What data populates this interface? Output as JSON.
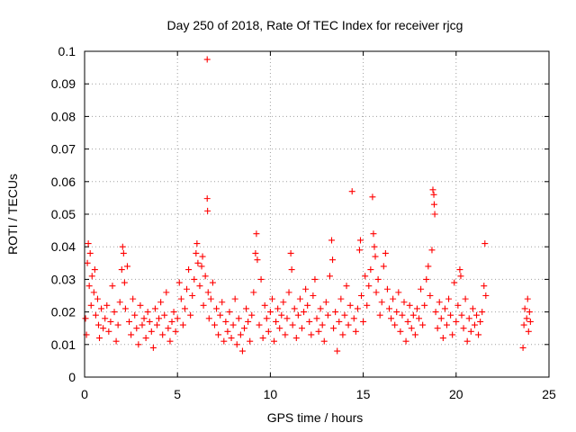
{
  "chart_data": {
    "type": "scatter",
    "title": "Day 250 of 2018, Rate Of TEC Index for receiver rjcg",
    "xlabel": "GPS time / hours",
    "ylabel": "ROTI / TECUs",
    "xlim": [
      0,
      25
    ],
    "ylim": [
      0,
      0.1
    ],
    "x_ticks": [
      "0",
      "5",
      "10",
      "15",
      "20",
      "25"
    ],
    "y_ticks": [
      "0",
      "0.01",
      "0.02",
      "0.03",
      "0.04",
      "0.05",
      "0.06",
      "0.07",
      "0.08",
      "0.09",
      "0.1"
    ],
    "grid": true,
    "marker": "+",
    "color": "#ff0000",
    "series": [
      {
        "name": "ROTI",
        "points": [
          [
            0.05,
            0.018
          ],
          [
            0.1,
            0.013
          ],
          [
            0.15,
            0.035
          ],
          [
            0.2,
            0.041
          ],
          [
            0.25,
            0.028
          ],
          [
            0.3,
            0.038
          ],
          [
            0.35,
            0.022
          ],
          [
            0.4,
            0.031
          ],
          [
            0.5,
            0.026
          ],
          [
            0.55,
            0.033
          ],
          [
            0.6,
            0.019
          ],
          [
            0.7,
            0.024
          ],
          [
            0.75,
            0.016
          ],
          [
            0.8,
            0.012
          ],
          [
            0.9,
            0.021
          ],
          [
            1.0,
            0.015
          ],
          [
            1.1,
            0.018
          ],
          [
            1.2,
            0.022
          ],
          [
            1.3,
            0.014
          ],
          [
            1.4,
            0.017
          ],
          [
            1.5,
            0.028
          ],
          [
            1.6,
            0.02
          ],
          [
            1.7,
            0.011
          ],
          [
            1.8,
            0.016
          ],
          [
            1.9,
            0.023
          ],
          [
            2.0,
            0.033
          ],
          [
            2.05,
            0.04
          ],
          [
            2.1,
            0.038
          ],
          [
            2.15,
            0.029
          ],
          [
            2.2,
            0.021
          ],
          [
            2.3,
            0.034
          ],
          [
            2.4,
            0.017
          ],
          [
            2.5,
            0.013
          ],
          [
            2.6,
            0.024
          ],
          [
            2.7,
            0.019
          ],
          [
            2.8,
            0.015
          ],
          [
            2.9,
            0.01
          ],
          [
            3.0,
            0.022
          ],
          [
            3.1,
            0.016
          ],
          [
            3.2,
            0.018
          ],
          [
            3.3,
            0.012
          ],
          [
            3.4,
            0.02
          ],
          [
            3.5,
            0.017
          ],
          [
            3.6,
            0.014
          ],
          [
            3.7,
            0.009
          ],
          [
            3.8,
            0.021
          ],
          [
            3.9,
            0.016
          ],
          [
            4.0,
            0.018
          ],
          [
            4.1,
            0.023
          ],
          [
            4.2,
            0.013
          ],
          [
            4.3,
            0.019
          ],
          [
            4.4,
            0.026
          ],
          [
            4.5,
            0.015
          ],
          [
            4.6,
            0.011
          ],
          [
            4.7,
            0.017
          ],
          [
            4.8,
            0.02
          ],
          [
            4.9,
            0.014
          ],
          [
            5.0,
            0.018
          ],
          [
            5.1,
            0.029
          ],
          [
            5.2,
            0.024
          ],
          [
            5.3,
            0.016
          ],
          [
            5.4,
            0.021
          ],
          [
            5.5,
            0.027
          ],
          [
            5.6,
            0.033
          ],
          [
            5.7,
            0.019
          ],
          [
            5.8,
            0.025
          ],
          [
            5.9,
            0.03
          ],
          [
            6.0,
            0.038
          ],
          [
            6.05,
            0.041
          ],
          [
            6.1,
            0.035
          ],
          [
            6.2,
            0.028
          ],
          [
            6.3,
            0.034
          ],
          [
            6.35,
            0.037
          ],
          [
            6.4,
            0.022
          ],
          [
            6.5,
            0.031
          ],
          [
            6.6,
            0.0975
          ],
          [
            6.6,
            0.0548
          ],
          [
            6.62,
            0.051
          ],
          [
            6.65,
            0.026
          ],
          [
            6.7,
            0.018
          ],
          [
            6.8,
            0.024
          ],
          [
            6.9,
            0.029
          ],
          [
            7.0,
            0.016
          ],
          [
            7.1,
            0.021
          ],
          [
            7.2,
            0.013
          ],
          [
            7.3,
            0.019
          ],
          [
            7.4,
            0.023
          ],
          [
            7.5,
            0.011
          ],
          [
            7.6,
            0.017
          ],
          [
            7.7,
            0.014
          ],
          [
            7.8,
            0.02
          ],
          [
            7.9,
            0.012
          ],
          [
            8.0,
            0.016
          ],
          [
            8.1,
            0.024
          ],
          [
            8.2,
            0.01
          ],
          [
            8.3,
            0.018
          ],
          [
            8.4,
            0.013
          ],
          [
            8.5,
            0.008
          ],
          [
            8.6,
            0.015
          ],
          [
            8.7,
            0.021
          ],
          [
            8.8,
            0.017
          ],
          [
            8.9,
            0.011
          ],
          [
            9.0,
            0.019
          ],
          [
            9.1,
            0.026
          ],
          [
            9.2,
            0.038
          ],
          [
            9.25,
            0.044
          ],
          [
            9.3,
            0.036
          ],
          [
            9.4,
            0.016
          ],
          [
            9.5,
            0.03
          ],
          [
            9.6,
            0.012
          ],
          [
            9.7,
            0.022
          ],
          [
            9.8,
            0.018
          ],
          [
            9.9,
            0.014
          ],
          [
            10.0,
            0.02
          ],
          [
            10.1,
            0.024
          ],
          [
            10.2,
            0.011
          ],
          [
            10.3,
            0.017
          ],
          [
            10.4,
            0.021
          ],
          [
            10.5,
            0.015
          ],
          [
            10.6,
            0.019
          ],
          [
            10.7,
            0.023
          ],
          [
            10.8,
            0.013
          ],
          [
            10.9,
            0.018
          ],
          [
            11.0,
            0.026
          ],
          [
            11.1,
            0.038
          ],
          [
            11.15,
            0.033
          ],
          [
            11.2,
            0.016
          ],
          [
            11.3,
            0.021
          ],
          [
            11.4,
            0.012
          ],
          [
            11.5,
            0.019
          ],
          [
            11.6,
            0.024
          ],
          [
            11.7,
            0.015
          ],
          [
            11.8,
            0.02
          ],
          [
            11.9,
            0.027
          ],
          [
            12.0,
            0.022
          ],
          [
            12.1,
            0.017
          ],
          [
            12.2,
            0.013
          ],
          [
            12.3,
            0.025
          ],
          [
            12.4,
            0.03
          ],
          [
            12.5,
            0.018
          ],
          [
            12.6,
            0.014
          ],
          [
            12.7,
            0.021
          ],
          [
            12.8,
            0.016
          ],
          [
            12.9,
            0.011
          ],
          [
            13.0,
            0.023
          ],
          [
            13.1,
            0.019
          ],
          [
            13.2,
            0.031
          ],
          [
            13.3,
            0.042
          ],
          [
            13.35,
            0.036
          ],
          [
            13.4,
            0.015
          ],
          [
            13.5,
            0.02
          ],
          [
            13.6,
            0.008
          ],
          [
            13.7,
            0.017
          ],
          [
            13.8,
            0.024
          ],
          [
            13.9,
            0.013
          ],
          [
            14.0,
            0.019
          ],
          [
            14.1,
            0.028
          ],
          [
            14.2,
            0.016
          ],
          [
            14.3,
            0.022
          ],
          [
            14.4,
            0.057
          ],
          [
            14.5,
            0.018
          ],
          [
            14.6,
            0.014
          ],
          [
            14.7,
            0.021
          ],
          [
            14.8,
            0.039
          ],
          [
            14.85,
            0.042
          ],
          [
            14.9,
            0.025
          ],
          [
            15.0,
            0.017
          ],
          [
            15.1,
            0.031
          ],
          [
            15.2,
            0.022
          ],
          [
            15.3,
            0.028
          ],
          [
            15.4,
            0.033
          ],
          [
            15.5,
            0.0553
          ],
          [
            15.55,
            0.044
          ],
          [
            15.6,
            0.04
          ],
          [
            15.65,
            0.037
          ],
          [
            15.7,
            0.026
          ],
          [
            15.8,
            0.03
          ],
          [
            15.9,
            0.019
          ],
          [
            16.0,
            0.023
          ],
          [
            16.1,
            0.034
          ],
          [
            16.2,
            0.038
          ],
          [
            16.3,
            0.027
          ],
          [
            16.4,
            0.021
          ],
          [
            16.5,
            0.018
          ],
          [
            16.6,
            0.024
          ],
          [
            16.7,
            0.016
          ],
          [
            16.8,
            0.02
          ],
          [
            16.9,
            0.026
          ],
          [
            17.0,
            0.014
          ],
          [
            17.1,
            0.019
          ],
          [
            17.2,
            0.023
          ],
          [
            17.3,
            0.011
          ],
          [
            17.4,
            0.017
          ],
          [
            17.5,
            0.022
          ],
          [
            17.6,
            0.015
          ],
          [
            17.7,
            0.019
          ],
          [
            17.8,
            0.013
          ],
          [
            17.9,
            0.021
          ],
          [
            18.0,
            0.018
          ],
          [
            18.1,
            0.027
          ],
          [
            18.2,
            0.016
          ],
          [
            18.3,
            0.022
          ],
          [
            18.4,
            0.03
          ],
          [
            18.5,
            0.034
          ],
          [
            18.6,
            0.025
          ],
          [
            18.7,
            0.039
          ],
          [
            18.75,
            0.0575
          ],
          [
            18.8,
            0.056
          ],
          [
            18.82,
            0.053
          ],
          [
            18.85,
            0.05
          ],
          [
            18.9,
            0.02
          ],
          [
            19.0,
            0.015
          ],
          [
            19.1,
            0.023
          ],
          [
            19.2,
            0.018
          ],
          [
            19.3,
            0.012
          ],
          [
            19.4,
            0.021
          ],
          [
            19.5,
            0.016
          ],
          [
            19.6,
            0.024
          ],
          [
            19.7,
            0.019
          ],
          [
            19.8,
            0.013
          ],
          [
            19.9,
            0.029
          ],
          [
            20.0,
            0.017
          ],
          [
            20.1,
            0.022
          ],
          [
            20.2,
            0.033
          ],
          [
            20.25,
            0.031
          ],
          [
            20.3,
            0.019
          ],
          [
            20.4,
            0.015
          ],
          [
            20.5,
            0.024
          ],
          [
            20.6,
            0.011
          ],
          [
            20.7,
            0.018
          ],
          [
            20.8,
            0.014
          ],
          [
            20.9,
            0.021
          ],
          [
            21.0,
            0.016
          ],
          [
            21.1,
            0.019
          ],
          [
            21.2,
            0.013
          ],
          [
            21.3,
            0.017
          ],
          [
            21.4,
            0.02
          ],
          [
            21.5,
            0.028
          ],
          [
            21.55,
            0.041
          ],
          [
            21.6,
            0.025
          ],
          [
            23.6,
            0.009
          ],
          [
            23.65,
            0.016
          ],
          [
            23.7,
            0.021
          ],
          [
            23.8,
            0.018
          ],
          [
            23.85,
            0.024
          ],
          [
            23.9,
            0.014
          ],
          [
            23.95,
            0.02
          ],
          [
            24.0,
            0.017
          ]
        ]
      }
    ]
  }
}
